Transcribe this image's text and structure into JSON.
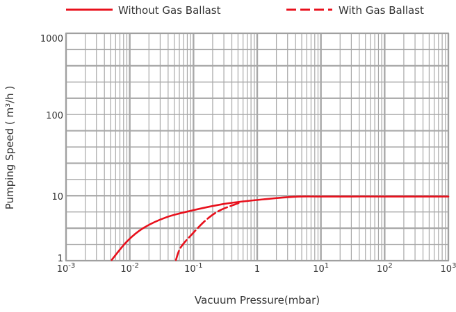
{
  "chart_data": {
    "type": "line",
    "title": "",
    "xlabel": "Vacuum Pressure(mbar)",
    "ylabel": "Pumping Speed ( m³/h )",
    "xscale": "log",
    "yscale": "log",
    "xlim": [
      0.001,
      1000
    ],
    "ylim": [
      1,
      1000
    ],
    "grid": true,
    "legend_placement": "top",
    "x_ticks": [
      {
        "value": 0.001,
        "base": "10",
        "exp": "-3"
      },
      {
        "value": 0.01,
        "base": "10",
        "exp": "-2"
      },
      {
        "value": 0.1,
        "base": "10",
        "exp": "-1"
      },
      {
        "value": 1,
        "base": "1",
        "exp": ""
      },
      {
        "value": 10,
        "base": "10",
        "exp": "1"
      },
      {
        "value": 100,
        "base": "10",
        "exp": "2"
      },
      {
        "value": 1000,
        "base": "10",
        "exp": "3"
      }
    ],
    "y_ticks": [
      {
        "value": 1,
        "label": "1"
      },
      {
        "value": 10,
        "label": "10"
      },
      {
        "value": 100,
        "label": "100"
      },
      {
        "value": 1000,
        "label": "1000"
      }
    ],
    "series": [
      {
        "name": "Without Gas Ballast",
        "style": "solid",
        "color": "#e8101c",
        "x": [
          0.0052,
          0.0091,
          0.0166,
          0.038,
          0.097,
          0.31,
          1.08,
          3.8,
          10,
          100,
          1000
        ],
        "y": [
          1.0,
          1.97,
          3.2,
          4.7,
          6.0,
          7.6,
          8.8,
          9.8,
          9.9,
          9.9,
          9.9
        ]
      },
      {
        "name": "With Gas Ballast",
        "style": "dashed",
        "color": "#e8101c",
        "x": [
          0.053,
          0.063,
          0.097,
          0.16,
          0.26,
          0.51
        ],
        "y": [
          1.0,
          1.57,
          2.6,
          4.3,
          6.0,
          7.8
        ]
      }
    ]
  }
}
